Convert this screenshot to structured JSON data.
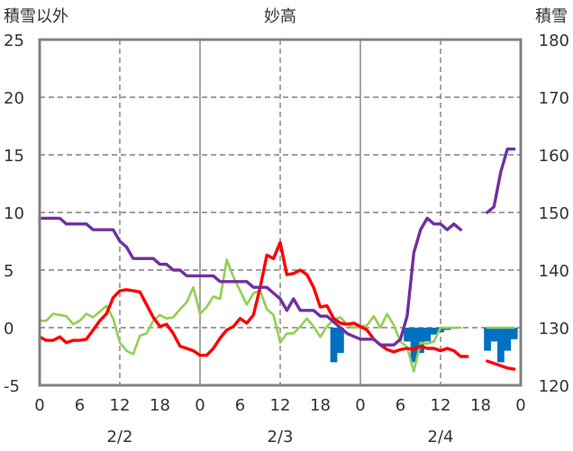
{
  "chart_data": {
    "type": "line",
    "title": "妙高",
    "ylabel_left": "積雪以外",
    "ylabel_right": "積雪",
    "ylim_left": [
      -5,
      25
    ],
    "ylim_right": [
      120,
      180
    ],
    "yticks_left": [
      "25",
      "20",
      "15",
      "10",
      "5",
      "0",
      "-5"
    ],
    "yticks_right": [
      "180",
      "170",
      "160",
      "150",
      "140",
      "130",
      "120"
    ],
    "xlim": [
      0,
      72
    ],
    "xticks": [
      "0",
      "6",
      "12",
      "18",
      "0",
      "6",
      "12",
      "18",
      "0",
      "6",
      "12",
      "18",
      "0"
    ],
    "date_labels": [
      {
        "hour": 12,
        "label": "2/2"
      },
      {
        "hour": 36,
        "label": "2/3"
      },
      {
        "hour": 60,
        "label": "2/4"
      }
    ],
    "grid": {
      "dashed_at_hours": [
        12,
        36,
        60
      ],
      "solid_at_hours": [
        24,
        48
      ],
      "horizontal": true
    },
    "colors": {
      "snow_depth": "#7030a0",
      "temperature": "#ff0000",
      "wind": "#92d050",
      "precipitation": "#0070c0",
      "axis": "#808080",
      "grid": "#808080"
    },
    "series": [
      {
        "key": "snow_depth",
        "axis": "right",
        "segments": [
          [
            [
              0,
              149
            ],
            [
              3,
              149
            ],
            [
              4,
              148
            ],
            [
              7,
              148
            ],
            [
              8,
              147
            ],
            [
              11,
              147
            ],
            [
              12,
              145
            ],
            [
              13,
              144
            ],
            [
              14,
              142
            ],
            [
              17,
              142
            ],
            [
              18,
              141
            ],
            [
              19,
              141
            ],
            [
              20,
              140
            ],
            [
              21,
              140
            ],
            [
              22,
              139
            ],
            [
              26,
              139
            ],
            [
              27,
              138
            ],
            [
              31,
              138
            ],
            [
              32,
              137
            ],
            [
              34,
              137
            ],
            [
              35,
              136
            ],
            [
              36,
              135
            ],
            [
              37,
              133
            ],
            [
              38,
              135
            ],
            [
              39,
              133
            ],
            [
              41,
              133
            ],
            [
              42,
              132
            ],
            [
              43,
              132
            ],
            [
              44,
              131
            ],
            [
              45,
              130
            ],
            [
              46,
              129
            ],
            [
              48,
              128
            ],
            [
              50,
              128
            ],
            [
              51,
              127
            ],
            [
              53,
              127
            ],
            [
              54,
              128
            ],
            [
              55,
              132
            ],
            [
              56,
              143
            ],
            [
              57,
              147
            ],
            [
              58,
              149
            ],
            [
              59,
              148
            ],
            [
              60,
              148
            ],
            [
              61,
              147
            ],
            [
              62,
              148
            ],
            [
              63,
              147
            ]
          ],
          [
            [
              67,
              150
            ],
            [
              68,
              151
            ],
            [
              69,
              157
            ],
            [
              70,
              161
            ],
            [
              71,
              161
            ]
          ]
        ]
      },
      {
        "key": "temperature",
        "axis": "left",
        "segments": [
          [
            [
              0,
              -0.8
            ],
            [
              1,
              -1.1
            ],
            [
              2,
              -1.1
            ],
            [
              3,
              -0.8
            ],
            [
              4,
              -1.3
            ],
            [
              5,
              -1.1
            ],
            [
              6,
              -1.1
            ],
            [
              7,
              -1.0
            ],
            [
              8,
              -0.2
            ],
            [
              9,
              0.6
            ],
            [
              10,
              1.2
            ],
            [
              11,
              2.6
            ],
            [
              12,
              3.2
            ],
            [
              13,
              3.3
            ],
            [
              14,
              3.2
            ],
            [
              15,
              3.1
            ],
            [
              16,
              2.0
            ],
            [
              17,
              0.9
            ],
            [
              18,
              0.1
            ],
            [
              19,
              0.3
            ],
            [
              20,
              -0.5
            ],
            [
              21,
              -1.6
            ],
            [
              22,
              -1.8
            ],
            [
              23,
              -2.0
            ],
            [
              24,
              -2.4
            ],
            [
              25,
              -2.4
            ],
            [
              26,
              -1.8
            ],
            [
              27,
              -0.9
            ],
            [
              28,
              -0.2
            ],
            [
              29,
              0.1
            ],
            [
              30,
              0.8
            ],
            [
              31,
              0.4
            ],
            [
              32,
              1.1
            ],
            [
              33,
              3.5
            ],
            [
              34,
              6.3
            ],
            [
              35,
              6.0
            ],
            [
              36,
              7.4
            ],
            [
              37,
              4.6
            ],
            [
              38,
              4.7
            ],
            [
              39,
              5.0
            ],
            [
              40,
              4.6
            ],
            [
              41,
              3.5
            ],
            [
              42,
              1.8
            ],
            [
              43,
              1.9
            ],
            [
              44,
              0.8
            ],
            [
              45,
              0.4
            ],
            [
              46,
              0.3
            ],
            [
              47,
              0.4
            ],
            [
              48,
              0.1
            ],
            [
              49,
              -0.2
            ],
            [
              50,
              -1.0
            ],
            [
              51,
              -1.5
            ],
            [
              52,
              -1.9
            ],
            [
              53,
              -2.1
            ],
            [
              54,
              -1.9
            ],
            [
              55,
              -1.8
            ],
            [
              56,
              -1.9
            ],
            [
              57,
              -1.6
            ],
            [
              58,
              -1.8
            ],
            [
              59,
              -1.8
            ],
            [
              60,
              -2.0
            ],
            [
              61,
              -1.8
            ],
            [
              62,
              -2.0
            ],
            [
              63,
              -2.5
            ],
            [
              64,
              -2.5
            ]
          ],
          [
            [
              67,
              -2.9
            ],
            [
              68,
              -3.1
            ],
            [
              69,
              -3.3
            ],
            [
              70,
              -3.5
            ],
            [
              71,
              -3.6
            ]
          ]
        ]
      },
      {
        "key": "wind",
        "axis": "left",
        "segments": [
          [
            [
              0,
              0.6
            ],
            [
              1,
              0.6
            ],
            [
              2,
              1.2
            ],
            [
              3,
              1.1
            ],
            [
              4,
              1.0
            ],
            [
              5,
              0.3
            ],
            [
              6,
              0.6
            ],
            [
              7,
              1.2
            ],
            [
              8,
              0.9
            ],
            [
              9,
              1.4
            ],
            [
              10,
              1.9
            ],
            [
              11,
              0.8
            ],
            [
              12,
              -1.3
            ],
            [
              13,
              -2.0
            ],
            [
              14,
              -2.3
            ],
            [
              15,
              -0.7
            ],
            [
              16,
              -0.5
            ],
            [
              17,
              0.6
            ],
            [
              18,
              1.1
            ],
            [
              19,
              0.8
            ],
            [
              20,
              0.9
            ],
            [
              21,
              1.6
            ],
            [
              22,
              2.2
            ],
            [
              23,
              3.5
            ],
            [
              24,
              1.2
            ],
            [
              25,
              1.8
            ],
            [
              26,
              2.7
            ],
            [
              27,
              2.5
            ],
            [
              28,
              5.9
            ],
            [
              29,
              4.4
            ],
            [
              30,
              3.2
            ],
            [
              31,
              2.0
            ],
            [
              32,
              3.0
            ],
            [
              33,
              3.2
            ],
            [
              34,
              1.6
            ],
            [
              35,
              1.1
            ],
            [
              36,
              -1.3
            ],
            [
              37,
              -0.5
            ],
            [
              38,
              -0.5
            ],
            [
              39,
              0.1
            ],
            [
              40,
              0.8
            ],
            [
              41,
              0.1
            ],
            [
              42,
              -0.8
            ],
            [
              43,
              0.1
            ],
            [
              44,
              0.7
            ],
            [
              45,
              0.9
            ],
            [
              46,
              0.3
            ],
            [
              47,
              0.0
            ],
            [
              48,
              0.1
            ],
            [
              49,
              0.2
            ],
            [
              50,
              1.0
            ],
            [
              51,
              0.0
            ],
            [
              52,
              1.2
            ],
            [
              53,
              0.2
            ],
            [
              54,
              -1.2
            ],
            [
              55,
              -1.7
            ],
            [
              56,
              -3.8
            ],
            [
              57,
              -1.3
            ],
            [
              58,
              -1.4
            ],
            [
              59,
              -1.2
            ],
            [
              60,
              0.0
            ],
            [
              61,
              0.0
            ],
            [
              62,
              0.0
            ],
            [
              63,
              0.0
            ]
          ],
          [
            [
              67,
              0.0
            ],
            [
              68,
              0.0
            ],
            [
              69,
              0.0
            ],
            [
              70,
              0.0
            ],
            [
              71,
              0.0
            ]
          ]
        ]
      }
    ],
    "bars": {
      "key": "precipitation",
      "axis": "left",
      "values": [
        [
          44,
          -3.0
        ],
        [
          45,
          -2.2
        ],
        [
          55,
          -1.2
        ],
        [
          56,
          -3.0
        ],
        [
          57,
          -2.2
        ],
        [
          58,
          -1.2
        ],
        [
          59,
          -0.6
        ],
        [
          60,
          -0.4
        ],
        [
          61,
          -0.2
        ],
        [
          62,
          -0.1
        ],
        [
          67,
          -2.0
        ],
        [
          68,
          -1.2
        ],
        [
          69,
          -3.0
        ],
        [
          70,
          -2.0
        ],
        [
          71,
          -1.0
        ]
      ]
    }
  }
}
